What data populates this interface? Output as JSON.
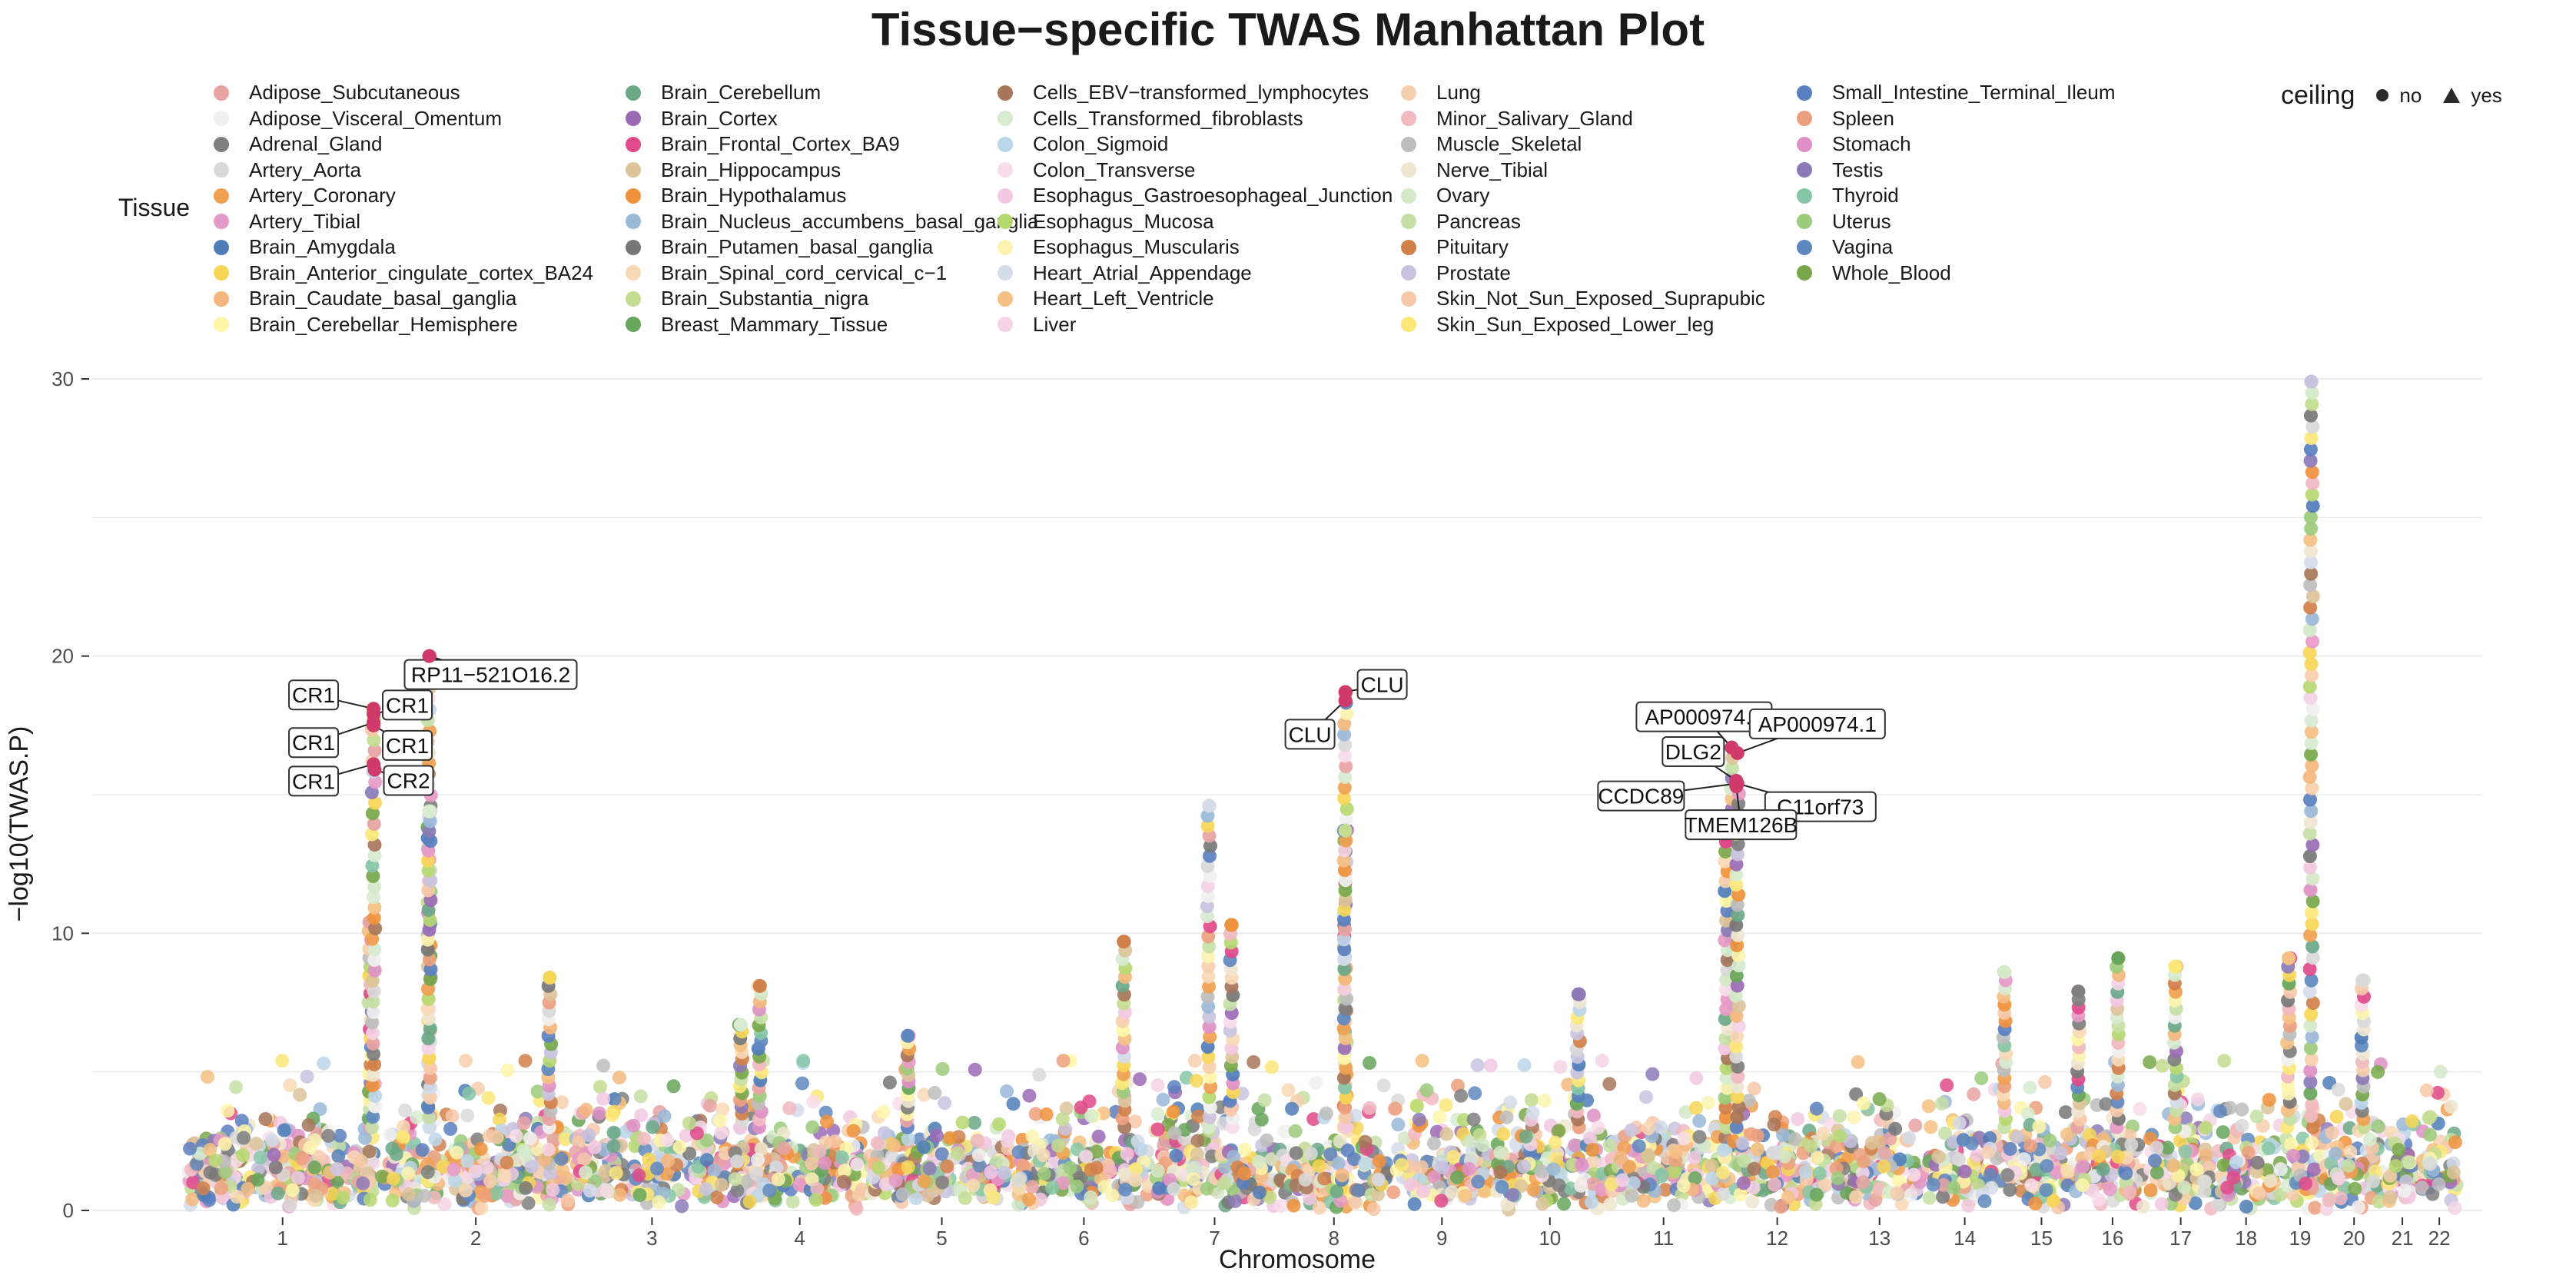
{
  "chart_data": {
    "type": "scatter",
    "title": "Tissue−specific TWAS Manhattan Plot",
    "xlabel": "Chromosome",
    "ylabel": "−log10(TWAS.P)",
    "ylim": [
      0,
      31
    ],
    "yticks": [
      0,
      10,
      20,
      30
    ],
    "grid": "horizontal",
    "legend_position": "top",
    "chromosomes": [
      {
        "label": "1",
        "start": 0.0,
        "end": 1.7
      },
      {
        "label": "2",
        "start": 1.7,
        "end": 3.4
      },
      {
        "label": "3",
        "start": 3.4,
        "end": 4.8
      },
      {
        "label": "4",
        "start": 4.8,
        "end": 6.0
      },
      {
        "label": "5",
        "start": 6.0,
        "end": 7.3
      },
      {
        "label": "6",
        "start": 7.3,
        "end": 8.5
      },
      {
        "label": "7",
        "start": 8.5,
        "end": 9.6
      },
      {
        "label": "8",
        "start": 9.6,
        "end": 10.6
      },
      {
        "label": "9",
        "start": 10.6,
        "end": 11.5
      },
      {
        "label": "10",
        "start": 11.5,
        "end": 12.5
      },
      {
        "label": "11",
        "start": 12.5,
        "end": 13.5
      },
      {
        "label": "12",
        "start": 13.5,
        "end": 14.5
      },
      {
        "label": "13",
        "start": 14.5,
        "end": 15.3
      },
      {
        "label": "14",
        "start": 15.3,
        "end": 16.0
      },
      {
        "label": "15",
        "start": 16.0,
        "end": 16.65
      },
      {
        "label": "16",
        "start": 16.65,
        "end": 17.25
      },
      {
        "label": "17",
        "start": 17.25,
        "end": 17.85
      },
      {
        "label": "18",
        "start": 17.85,
        "end": 18.4
      },
      {
        "label": "19",
        "start": 18.4,
        "end": 18.8
      },
      {
        "label": "20",
        "start": 18.8,
        "end": 19.35
      },
      {
        "label": "21",
        "start": 19.35,
        "end": 19.65
      },
      {
        "label": "22",
        "start": 19.65,
        "end": 20.0
      }
    ],
    "legend_title": "Tissue",
    "tissues": [
      {
        "name": "Adipose_Subcutaneous",
        "color": "#e8a3a3"
      },
      {
        "name": "Adipose_Visceral_Omentum",
        "color": "#f0f0f0"
      },
      {
        "name": "Adrenal_Gland",
        "color": "#7f7f7f"
      },
      {
        "name": "Artery_Aorta",
        "color": "#d9d9d9"
      },
      {
        "name": "Artery_Coronary",
        "color": "#f0a050"
      },
      {
        "name": "Artery_Tibial",
        "color": "#e89ac8"
      },
      {
        "name": "Brain_Amygdala",
        "color": "#4f7db8"
      },
      {
        "name": "Brain_Anterior_cingulate_cortex_BA24",
        "color": "#f7d656"
      },
      {
        "name": "Brain_Caudate_basal_ganglia",
        "color": "#f3b77e"
      },
      {
        "name": "Brain_Cerebellar_Hemisphere",
        "color": "#fff6a8"
      },
      {
        "name": "Brain_Cerebellum",
        "color": "#6aa888"
      },
      {
        "name": "Brain_Cortex",
        "color": "#9b6bb5"
      },
      {
        "name": "Brain_Frontal_Cortex_BA9",
        "color": "#e04a8a"
      },
      {
        "name": "Brain_Hippocampus",
        "color": "#dcc39a"
      },
      {
        "name": "Brain_Hypothalamus",
        "color": "#f0913c"
      },
      {
        "name": "Brain_Nucleus_accumbens_basal_ganglia",
        "color": "#9ab8d8"
      },
      {
        "name": "Brain_Putamen_basal_ganglia",
        "color": "#777777"
      },
      {
        "name": "Brain_Spinal_cord_cervical_c−1",
        "color": "#f8d9b5"
      },
      {
        "name": "Brain_Substantia_nigra",
        "color": "#c3dc8f"
      },
      {
        "name": "Breast_Mammary_Tissue",
        "color": "#66a55a"
      },
      {
        "name": "Cells_EBV−transformed_lymphocytes",
        "color": "#a8765a"
      },
      {
        "name": "Cells_Transformed_fibroblasts",
        "color": "#d7ecd0"
      },
      {
        "name": "Colon_Sigmoid",
        "color": "#bcd6ea"
      },
      {
        "name": "Colon_Transverse",
        "color": "#f8dcea"
      },
      {
        "name": "Esophagus_Gastroesophageal_Junction",
        "color": "#f2c8e2"
      },
      {
        "name": "Esophagus_Mucosa",
        "color": "#b6d870"
      },
      {
        "name": "Esophagus_Muscularis",
        "color": "#fcf3b0"
      },
      {
        "name": "Heart_Atrial_Appendage",
        "color": "#d4dcea"
      },
      {
        "name": "Heart_Left_Ventricle",
        "color": "#f4c083"
      },
      {
        "name": "Liver",
        "color": "#f4d3e6"
      },
      {
        "name": "Lung",
        "color": "#f6cfae"
      },
      {
        "name": "Minor_Salivary_Gland",
        "color": "#f1b9c0"
      },
      {
        "name": "Muscle_Skeletal",
        "color": "#bdbdbd"
      },
      {
        "name": "Nerve_Tibial",
        "color": "#efe6d0"
      },
      {
        "name": "Ovary",
        "color": "#d5e8c8"
      },
      {
        "name": "Pancreas",
        "color": "#c5dfa6"
      },
      {
        "name": "Pituitary",
        "color": "#d2804a"
      },
      {
        "name": "Prostate",
        "color": "#c9c3e0"
      },
      {
        "name": "Skin_Not_Sun_Exposed_Suprapubic",
        "color": "#f6c8a8"
      },
      {
        "name": "Skin_Sun_Exposed_Lower_leg",
        "color": "#fbe878"
      },
      {
        "name": "Small_Intestine_Terminal_Ileum",
        "color": "#5a7fc0"
      },
      {
        "name": "Spleen",
        "color": "#eda07e"
      },
      {
        "name": "Stomach",
        "color": "#de90c6"
      },
      {
        "name": "Testis",
        "color": "#8c7ab8"
      },
      {
        "name": "Thyroid",
        "color": "#86c6a6"
      },
      {
        "name": "Uterus",
        "color": "#9ccb7c"
      },
      {
        "name": "Vagina",
        "color": "#5f88c0"
      },
      {
        "name": "Whole_Blood",
        "color": "#78a84a"
      }
    ],
    "ceiling_legend": {
      "title": "ceiling",
      "items": [
        "no",
        "yes"
      ]
    },
    "labeled_genes": [
      {
        "gene": "CR1",
        "x": 1.65,
        "y": 18.1
      },
      {
        "gene": "CR1",
        "x": 1.65,
        "y": 17.9
      },
      {
        "gene": "CR1",
        "x": 1.65,
        "y": 17.6
      },
      {
        "gene": "CR1",
        "x": 1.65,
        "y": 17.5
      },
      {
        "gene": "CR1",
        "x": 1.65,
        "y": 16.1
      },
      {
        "gene": "CR2",
        "x": 1.66,
        "y": 15.9
      },
      {
        "gene": "RP11−521O16.2",
        "x": 2.14,
        "y": 20.0
      },
      {
        "gene": "CLU",
        "x": 10.2,
        "y": 18.7
      },
      {
        "gene": "CLU",
        "x": 10.2,
        "y": 18.4
      },
      {
        "gene": "AP000974.1",
        "x": 13.6,
        "y": 16.7
      },
      {
        "gene": "DLG2",
        "x": 13.64,
        "y": 15.5
      },
      {
        "gene": "AP000974.1",
        "x": 13.65,
        "y": 16.5
      },
      {
        "gene": "CCDC89",
        "x": 13.64,
        "y": 15.4
      },
      {
        "gene": "C11orf73",
        "x": 13.65,
        "y": 15.4
      },
      {
        "gene": "TMEM126B",
        "x": 13.64,
        "y": 15.3
      }
    ],
    "peaks": [
      {
        "x": 1.62,
        "y": 10.4
      },
      {
        "x": 1.65,
        "y": 18.1
      },
      {
        "x": 2.14,
        "y": 20.0
      },
      {
        "x": 2.14,
        "y": 14.4
      },
      {
        "x": 3.2,
        "y": 8.4
      },
      {
        "x": 4.88,
        "y": 6.7
      },
      {
        "x": 5.05,
        "y": 8.1
      },
      {
        "x": 6.35,
        "y": 6.3
      },
      {
        "x": 8.25,
        "y": 9.7
      },
      {
        "x": 9.0,
        "y": 14.6
      },
      {
        "x": 9.2,
        "y": 10.3
      },
      {
        "x": 10.2,
        "y": 18.7
      },
      {
        "x": 10.2,
        "y": 13.7
      },
      {
        "x": 12.25,
        "y": 7.8
      },
      {
        "x": 13.6,
        "y": 16.7
      },
      {
        "x": 13.55,
        "y": 13.3
      },
      {
        "x": 13.65,
        "y": 15.4
      },
      {
        "x": 16.0,
        "y": 8.6
      },
      {
        "x": 16.65,
        "y": 7.9
      },
      {
        "x": 17.0,
        "y": 9.1
      },
      {
        "x": 17.5,
        "y": 8.8
      },
      {
        "x": 18.5,
        "y": 9.1
      },
      {
        "x": 18.7,
        "y": 29.9
      },
      {
        "x": 19.15,
        "y": 8.3
      }
    ]
  }
}
